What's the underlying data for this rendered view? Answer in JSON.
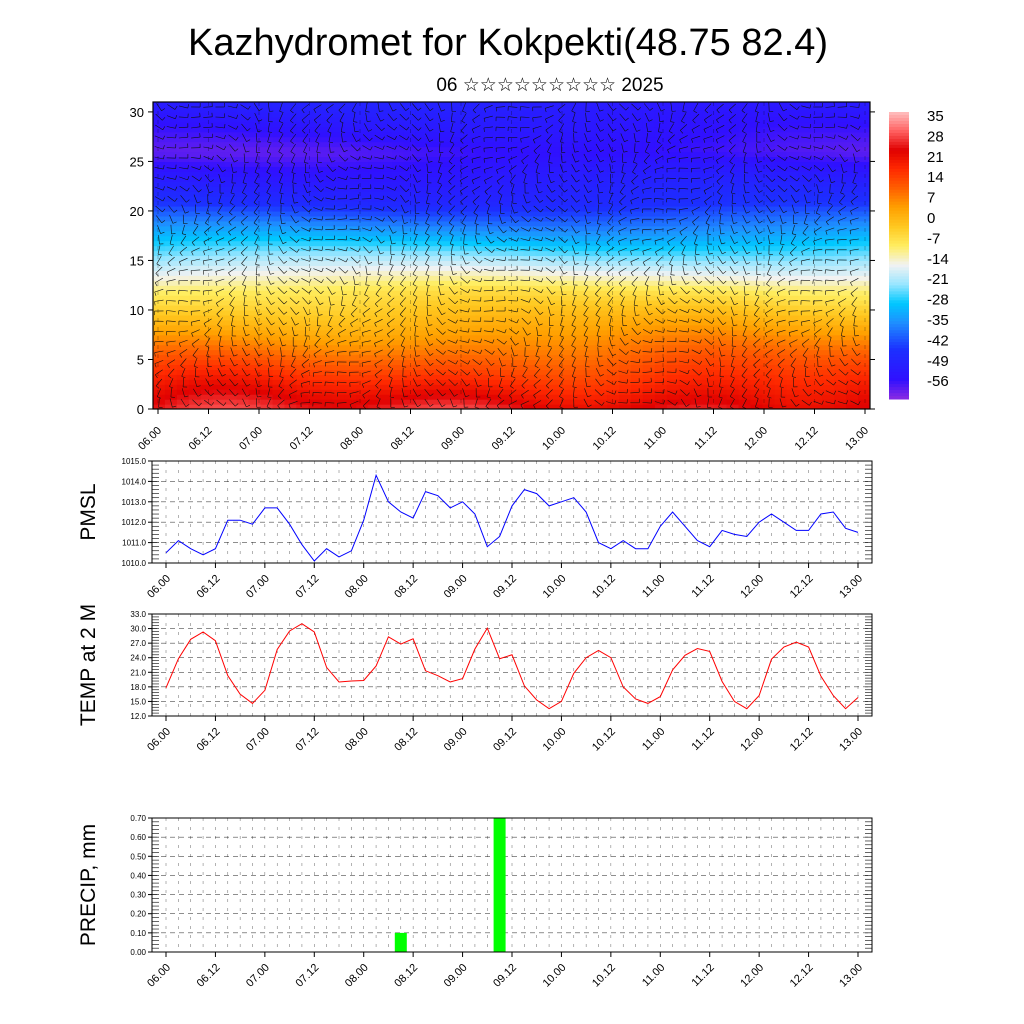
{
  "header": {
    "title": "Kazhydromet for Kokpekti(48.75 82.4)",
    "subtitle": "06 ☆☆☆☆☆☆☆☆☆ 2025"
  },
  "colors": {
    "pmsl_line": "#0000ff",
    "temp_line": "#ff0000",
    "precip_bar": "#00ff00",
    "grid": "#000000"
  },
  "chart_data": [
    {
      "type": "heatmap",
      "name": "temperature-wind-cross-section",
      "x_ticks": [
        "06.00",
        "06.12",
        "07.00",
        "07.12",
        "08.00",
        "08.12",
        "09.00",
        "09.12",
        "10.00",
        "10.12",
        "11.00",
        "11.12",
        "12.00",
        "12.12",
        "13.00"
      ],
      "y_ticks": [
        0,
        5,
        10,
        15,
        20,
        25,
        30
      ],
      "ylim": [
        0,
        31
      ],
      "colorbar_labels": [
        "35",
        "28",
        "21",
        "14",
        "7",
        "0",
        "-7",
        "-14",
        "-21",
        "-28",
        "-35",
        "-42",
        "-49",
        "-56"
      ],
      "colorbar_range": [
        -63,
        42
      ],
      "colorscale": [
        {
          "v": -63,
          "c": "#8a2be2"
        },
        {
          "v": -56,
          "c": "#3010ff"
        },
        {
          "v": -45,
          "c": "#1c30ff"
        },
        {
          "v": -35,
          "c": "#1e90ff"
        },
        {
          "v": -28,
          "c": "#00c8ff"
        },
        {
          "v": -21,
          "c": "#9ae6ff"
        },
        {
          "v": -14,
          "c": "#f2f2f2"
        },
        {
          "v": -7,
          "c": "#ffee60"
        },
        {
          "v": 0,
          "c": "#ffc820"
        },
        {
          "v": 7,
          "c": "#ffa000"
        },
        {
          "v": 14,
          "c": "#ff6000"
        },
        {
          "v": 21,
          "c": "#ff2a00"
        },
        {
          "v": 28,
          "c": "#e00000"
        },
        {
          "v": 35,
          "c": "#ff6060"
        },
        {
          "v": 42,
          "c": "#ffc0c0"
        }
      ],
      "grid": true
    },
    {
      "type": "line",
      "name": "PMSL",
      "ylabel": "PMSL",
      "ylim": [
        1010.0,
        1015.0
      ],
      "y_ticks": [
        "1010.0",
        "1011.0",
        "1012.0",
        "1013.0",
        "1014.0",
        "1015.0"
      ],
      "x_ticks": [
        "06.00",
        "06.12",
        "07.00",
        "07.12",
        "08.00",
        "08.12",
        "09.00",
        "09.12",
        "10.00",
        "10.12",
        "11.00",
        "11.12",
        "12.00",
        "12.12",
        "13.00"
      ],
      "step_hours": 3,
      "values": [
        1010.5,
        1011.1,
        1010.7,
        1010.4,
        1010.7,
        1012.1,
        1012.1,
        1011.9,
        1012.7,
        1012.7,
        1011.9,
        1010.9,
        1010.1,
        1010.7,
        1010.3,
        1010.6,
        1012.1,
        1014.3,
        1013.0,
        1012.5,
        1012.2,
        1013.5,
        1013.3,
        1012.7,
        1013.0,
        1012.4,
        1010.8,
        1011.3,
        1012.8,
        1013.6,
        1013.4,
        1012.8,
        1013.0,
        1013.2,
        1012.5,
        1011.0,
        1010.7,
        1011.1,
        1010.7,
        1010.7,
        1011.8,
        1012.5,
        1011.8,
        1011.1,
        1010.8,
        1011.6,
        1011.4,
        1011.3,
        1012.0,
        1012.4,
        1012.0,
        1011.6,
        1011.6,
        1012.4,
        1012.5,
        1011.7,
        1011.5
      ],
      "grid": true
    },
    {
      "type": "line",
      "name": "TEMP at 2 M",
      "ylabel": "TEMP at 2 M",
      "ylim": [
        12.0,
        33.0
      ],
      "y_ticks": [
        "12.0",
        "15.0",
        "18.0",
        "21.0",
        "24.0",
        "27.0",
        "30.0",
        "33.0"
      ],
      "x_ticks": [
        "06.00",
        "06.12",
        "07.00",
        "07.12",
        "08.00",
        "08.12",
        "09.00",
        "09.12",
        "10.00",
        "10.12",
        "11.00",
        "11.12",
        "12.00",
        "12.12",
        "13.00"
      ],
      "step_hours": 3,
      "values": [
        17.8,
        23.8,
        27.8,
        29.3,
        27.5,
        20.3,
        16.5,
        14.6,
        17.3,
        25.7,
        29.5,
        31.0,
        29.3,
        22.0,
        19.0,
        19.2,
        19.3,
        22.3,
        28.3,
        26.8,
        27.9,
        21.3,
        20.3,
        19.0,
        19.7,
        25.8,
        30.1,
        23.8,
        24.6,
        18.2,
        15.3,
        13.5,
        15.0,
        20.8,
        24.0,
        25.5,
        24.0,
        18.0,
        15.5,
        14.6,
        16.0,
        21.5,
        24.5,
        25.9,
        25.3,
        19.1,
        15.0,
        13.5,
        16.2,
        23.7,
        26.2,
        27.2,
        26.2,
        20.2,
        16.2,
        13.5,
        15.8
      ],
      "grid": true
    },
    {
      "type": "bar",
      "name": "PRECIP, mm",
      "ylabel": "PRECIP, mm",
      "ylim": [
        0.0,
        0.7
      ],
      "y_ticks": [
        "0.00",
        "0.10",
        "0.20",
        "0.30",
        "0.40",
        "0.50",
        "0.60",
        "0.70"
      ],
      "x_ticks": [
        "06.00",
        "06.12",
        "07.00",
        "07.12",
        "08.00",
        "08.12",
        "09.00",
        "09.12",
        "10.00",
        "10.12",
        "11.00",
        "11.12",
        "12.00",
        "12.12",
        "13.00"
      ],
      "step_hours": 3,
      "values": [
        0,
        0,
        0,
        0,
        0,
        0,
        0,
        0,
        0,
        0,
        0,
        0,
        0,
        0,
        0,
        0,
        0,
        0,
        0,
        0.1,
        0,
        0,
        0,
        0,
        0,
        0,
        0,
        0.7,
        0,
        0,
        0,
        0,
        0,
        0,
        0,
        0,
        0,
        0,
        0,
        0,
        0,
        0,
        0,
        0,
        0,
        0,
        0,
        0,
        0,
        0,
        0,
        0,
        0,
        0,
        0,
        0,
        0
      ],
      "grid": true
    }
  ]
}
